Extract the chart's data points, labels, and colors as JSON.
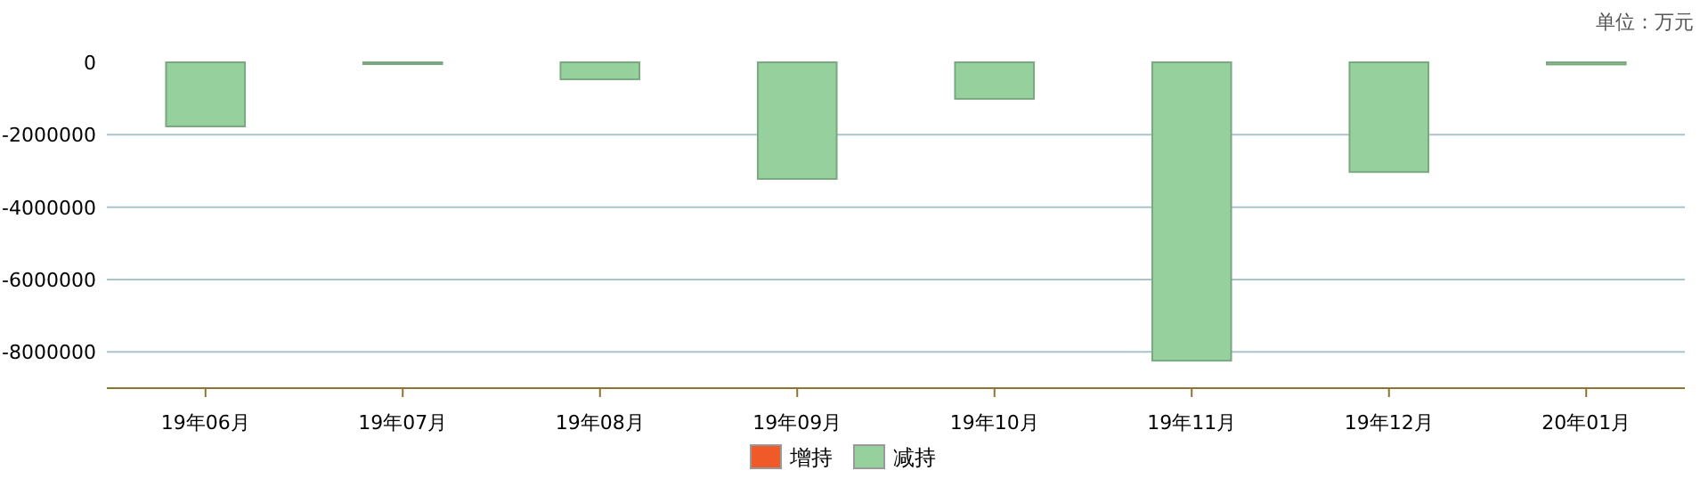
{
  "chart_data": {
    "type": "bar",
    "categories": [
      "19年06月",
      "19年07月",
      "19年08月",
      "19年09月",
      "19年10月",
      "19年11月",
      "19年12月",
      "20年01月"
    ],
    "series": [
      {
        "name": "增持",
        "color": "#f05a28",
        "values": [
          null,
          null,
          null,
          null,
          null,
          null,
          null,
          null
        ]
      },
      {
        "name": "减持",
        "color": "#96d09c",
        "values": [
          -1770000,
          -30000,
          -470000,
          -3220000,
          -1010000,
          -8240000,
          -3030000,
          -60000
        ]
      }
    ],
    "stacked": true,
    "ylim": [
      -9000000,
      0
    ],
    "yticks": [
      0,
      -2000000,
      -4000000,
      -6000000,
      -8000000
    ],
    "grid": "y",
    "legend": "bottom",
    "annotations": [
      "单位：万元"
    ]
  }
}
